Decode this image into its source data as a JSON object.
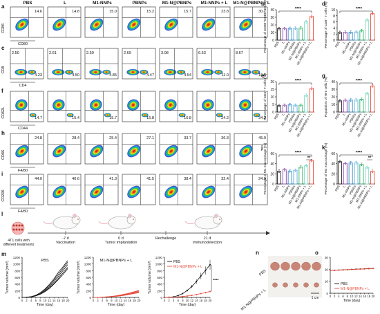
{
  "panel_letters": [
    "a",
    "b",
    "c",
    "d",
    "e",
    "f",
    "g",
    "h",
    "i",
    "j",
    "k",
    "l",
    "m",
    "n",
    "o"
  ],
  "groups": [
    "PBS",
    "L",
    "M1-NNPs",
    "PBNPs",
    "M1-N@PBNPs",
    "M1-NNPs + L",
    "M1-N@PBNPs + L"
  ],
  "flow_rows": [
    {
      "letter": "a",
      "ylabel": "CD86",
      "xlabel": "CD80",
      "values": [
        "14.6",
        "14.8",
        "15.0",
        "15.2",
        "15.7",
        "23.8",
        "30.7"
      ],
      "kind": "quad1"
    },
    {
      "letter": "c",
      "ylabel": "CD8",
      "xlabel": "CD4",
      "values": [
        "2.50",
        "2.61",
        "2.59",
        "2.69",
        "3.08",
        "6.63",
        "8.67"
      ],
      "values2": [
        "4.23",
        "4.50",
        "4.85",
        "4.47",
        "4.54",
        "11.0",
        "15.5"
      ],
      "kind": "quad2"
    },
    {
      "letter": "f",
      "ylabel": "CD62L",
      "xlabel": "CD44",
      "values": [
        "14.7",
        "15.4",
        "15.7",
        "15.8",
        "16.8",
        "24.2",
        "34.3"
      ],
      "kind": "quad3"
    },
    {
      "letter": "h",
      "ylabel": "CD86",
      "xlabel": "F4/80",
      "values": [
        "24.8",
        "28.4",
        "25.4",
        "27.1",
        "33.7",
        "36.3",
        "45.9"
      ],
      "kind": "quad1"
    },
    {
      "letter": "i",
      "ylabel": "CD206",
      "xlabel": "F4/80",
      "values": [
        "44.0",
        "40.6",
        "41.3",
        "41.5",
        "38.4",
        "32.4",
        "24.9"
      ],
      "kind": "quad1"
    }
  ],
  "bar_x_labels": [
    "PBS",
    "L",
    "M1-NNPs",
    "PBNPs",
    "M1-N@PBNPs",
    "M1-NNPs + L",
    "M1-N@PBNPs + L"
  ],
  "bar_colors": [
    "#222222",
    "#8e44ad",
    "#2e86c1",
    "#5dade2",
    "#27ae60",
    "#76d7c4",
    "#e74c3c"
  ],
  "chart_data": [
    {
      "type": "bar",
      "panel": "b",
      "ylabel": "Percentage of CD80⁺CD86⁺ DCs (%)",
      "categories": [
        "PBS",
        "L",
        "M1-NNPs",
        "PBNPs",
        "M1-N@PBNPs",
        "M1-NNPs + L",
        "M1-N@PBNPs + L"
      ],
      "values": [
        15,
        15.2,
        15.4,
        15.6,
        16,
        24,
        31
      ],
      "ylim": [
        0,
        40
      ],
      "ticks": [
        "0",
        "10",
        "20",
        "30",
        "40"
      ],
      "sig": "****"
    },
    {
      "type": "bar",
      "panel": "d",
      "ylabel": "Percentage of CD8⁺ T cells (%)",
      "categories": [
        "PBS",
        "L",
        "M1-NNPs",
        "PBNPs",
        "M1-N@PBNPs",
        "M1-NNPs + L",
        "M1-N@PBNPs + L"
      ],
      "values": [
        2.5,
        2.6,
        2.6,
        2.7,
        3.1,
        6.6,
        8.7
      ],
      "ylim": [
        0,
        10
      ],
      "ticks": [
        "0",
        "2",
        "4",
        "6",
        "8",
        "10"
      ],
      "sig": "****"
    },
    {
      "type": "bar",
      "panel": "e",
      "ylabel": "Percentage of CD4⁺ T cells (%)",
      "categories": [
        "PBS",
        "L",
        "M1-NNPs",
        "PBNPs",
        "M1-N@PBNPs",
        "M1-NNPs + L",
        "M1-N@PBNPs + L"
      ],
      "values": [
        4.2,
        4.5,
        4.8,
        4.5,
        4.5,
        11,
        15.5
      ],
      "ylim": [
        0,
        20
      ],
      "ticks": [
        "0",
        "5",
        "10",
        "15",
        "20"
      ],
      "sig": "****"
    },
    {
      "type": "bar",
      "panel": "g",
      "ylabel": "Population of Tem cells (%)",
      "categories": [
        "PBS",
        "L",
        "M1-NNPs",
        "PBNPs",
        "M1-N@PBNPs",
        "M1-NNPs + L",
        "M1-N@PBNPs + L"
      ],
      "values": [
        14.7,
        15.4,
        15.7,
        15.8,
        16.8,
        24.2,
        34.3
      ],
      "ylim": [
        0,
        40
      ],
      "ticks": [
        "0",
        "10",
        "20",
        "30",
        "40"
      ],
      "sig": "****"
    },
    {
      "type": "bar",
      "panel": "j",
      "ylabel": "Percentage of M1 macrophage (%)",
      "categories": [
        "PBS",
        "L",
        "M1-NNPs",
        "PBNPs",
        "M1-N@PBNPs",
        "M1-NNPs + L",
        "M1-N@PBNPs + L"
      ],
      "values": [
        25,
        28,
        25.5,
        27,
        33.5,
        36,
        46
      ],
      "ylim": [
        0,
        60
      ],
      "ticks": [
        "0",
        "20",
        "40",
        "60"
      ],
      "sig": "****",
      "sig2": "**"
    },
    {
      "type": "bar",
      "panel": "k",
      "ylabel": "Percentage of M2 macrophage (%)",
      "categories": [
        "PBS",
        "L",
        "M1-NNPs",
        "PBNPs",
        "M1-N@PBNPs",
        "M1-NNPs + L",
        "M1-N@PBNPs + L"
      ],
      "values": [
        44,
        40.5,
        41.5,
        41.5,
        38.5,
        32.5,
        25
      ],
      "ylim": [
        0,
        60
      ],
      "ticks": [
        "0",
        "20",
        "40",
        "60"
      ],
      "sig": "****",
      "sig2": "**"
    },
    {
      "type": "line",
      "panel": "m1",
      "title": "PBS",
      "xlabel": "Time (day)",
      "ylabel": "Tumor volume (mm³)",
      "x": [
        0,
        2,
        4,
        6,
        8,
        10,
        12,
        14,
        16,
        18,
        20
      ],
      "ylim": [
        0,
        1200
      ],
      "ticks": [
        "0",
        "200",
        "400",
        "600",
        "800",
        "1000",
        "1200"
      ],
      "series": [
        {
          "values": [
            0,
            5,
            20,
            60,
            130,
            230,
            360,
            520,
            700,
            870,
            1050
          ]
        },
        {
          "values": [
            0,
            5,
            18,
            50,
            110,
            200,
            320,
            470,
            640,
            810,
            980
          ]
        },
        {
          "values": [
            0,
            4,
            15,
            45,
            100,
            180,
            290,
            420,
            580,
            740,
            900
          ]
        },
        {
          "values": [
            0,
            6,
            22,
            65,
            140,
            250,
            390,
            560,
            760,
            920,
            1100
          ]
        },
        {
          "values": [
            0,
            4,
            16,
            48,
            95,
            170,
            270,
            400,
            540,
            690,
            860
          ]
        }
      ]
    },
    {
      "type": "line",
      "panel": "m2",
      "title": "M1-N@PBNPs + L",
      "xlabel": "Time (day)",
      "ylabel": "Tumor volume (mm³)",
      "x": [
        0,
        2,
        4,
        6,
        8,
        10,
        12,
        14,
        16,
        18,
        20
      ],
      "ylim": [
        0,
        1200
      ],
      "ticks": [
        "0",
        "200",
        "400",
        "600",
        "800",
        "1000",
        "1200"
      ],
      "series": [
        {
          "values": [
            0,
            2,
            6,
            14,
            26,
            40,
            60,
            85,
            115,
            145,
            180
          ]
        },
        {
          "values": [
            0,
            2,
            5,
            12,
            22,
            35,
            52,
            75,
            100,
            128,
            160
          ]
        },
        {
          "values": [
            0,
            3,
            8,
            18,
            32,
            50,
            74,
            100,
            135,
            170,
            210
          ]
        },
        {
          "values": [
            0,
            2,
            5,
            10,
            20,
            32,
            46,
            66,
            90,
            115,
            140
          ]
        },
        {
          "values": [
            0,
            3,
            7,
            16,
            30,
            46,
            68,
            95,
            125,
            158,
            195
          ]
        }
      ]
    },
    {
      "type": "line",
      "panel": "m3",
      "xlabel": "Time (day)",
      "ylabel": "Tumor volume (mm³)",
      "x": [
        0,
        2,
        4,
        6,
        8,
        10,
        12,
        14,
        16,
        18,
        20
      ],
      "ylim": [
        0,
        1200
      ],
      "ticks": [
        "0",
        "200",
        "400",
        "600",
        "800",
        "1000",
        "1200"
      ],
      "sig": "****",
      "series": [
        {
          "name": "PBS",
          "values": [
            0,
            5,
            18,
            54,
            115,
            206,
            326,
            474,
            644,
            806,
            978
          ]
        },
        {
          "name": "M1-N@PBNPs + L",
          "values": [
            0,
            2,
            6,
            14,
            26,
            41,
            60,
            84,
            113,
            143,
            177
          ]
        }
      ]
    },
    {
      "type": "line",
      "panel": "o",
      "xlabel": "Time (day)",
      "ylabel": "Body weight (g)",
      "x": [
        0,
        2,
        4,
        6,
        8,
        10,
        12,
        14,
        16,
        18,
        20
      ],
      "ylim": [
        0,
        30
      ],
      "ticks": [
        "0",
        "10",
        "20",
        "30"
      ],
      "series": [
        {
          "name": "PBS",
          "values": [
            19,
            19.2,
            19.4,
            19.5,
            19.7,
            19.9,
            20.1,
            20.2,
            20.4,
            20.6,
            20.7
          ]
        },
        {
          "name": "M1-N@PBNPs + L",
          "values": [
            19,
            19.1,
            19.3,
            19.5,
            19.6,
            19.8,
            20,
            20.1,
            20.3,
            20.4,
            20.6
          ]
        }
      ]
    }
  ],
  "schema": {
    "cells_label": "4T1 cells with different treatments",
    "steps": [
      {
        "day": "-7 d",
        "label": "Vaccination"
      },
      {
        "day": "0 d",
        "label": "Tumor implantation"
      },
      {
        "day": "",
        "label": "Rechallenge"
      },
      {
        "day": "21 d",
        "label": "Immunodetection"
      }
    ]
  },
  "tumor_photo": {
    "rows": [
      "PBS",
      "M1-N@PBNPs + L"
    ],
    "scale": "1 cm"
  }
}
